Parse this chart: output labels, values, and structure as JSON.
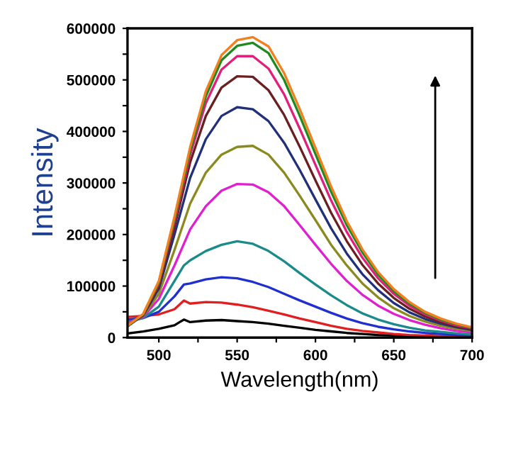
{
  "chart_data": {
    "type": "line",
    "xlabel": "Wavelength(nm)",
    "ylabel": "Intensity",
    "xlim": [
      480,
      700
    ],
    "ylim": [
      0,
      600000
    ],
    "xticks": [
      500,
      {
        "value": 525,
        "label": null
      },
      550,
      {
        "value": 575,
        "label": null
      },
      600,
      {
        "value": 625,
        "label": null
      },
      650,
      {
        "value": 675,
        "label": null
      },
      700
    ],
    "yticks": [
      0,
      {
        "value": 50000,
        "label": null
      },
      100000,
      {
        "value": 150000,
        "label": null
      },
      200000,
      {
        "value": 250000,
        "label": null
      },
      300000,
      {
        "value": 350000,
        "label": null
      },
      400000,
      {
        "value": 450000,
        "label": null
      },
      500000,
      {
        "value": 550000,
        "label": null
      },
      600000
    ],
    "marker": "none",
    "line_style": "solid",
    "x": [
      480,
      490,
      500,
      510,
      520,
      530,
      540,
      550,
      560,
      570,
      580,
      590,
      600,
      610,
      620,
      630,
      640,
      650,
      660,
      670,
      680,
      690,
      700
    ],
    "series": [
      {
        "color": "#000000",
        "x": [
          480,
          490,
          500,
          510,
          516,
          520,
          530,
          540,
          550,
          560,
          570,
          580,
          590,
          600,
          610,
          620,
          630,
          640,
          650,
          660,
          670,
          680,
          690,
          700
        ],
        "values": [
          8000,
          12000,
          17000,
          24000,
          35000,
          30000,
          33000,
          34000,
          32000,
          30000,
          27000,
          23000,
          19000,
          15000,
          12000,
          9000,
          7000,
          5000,
          4000,
          3000,
          2000,
          2000,
          1000,
          1000
        ]
      },
      {
        "color": "#e02020",
        "x": [
          480,
          490,
          500,
          510,
          516,
          520,
          530,
          540,
          550,
          560,
          570,
          580,
          590,
          600,
          610,
          620,
          630,
          640,
          650,
          660,
          670,
          680,
          690,
          700
        ],
        "values": [
          40000,
          42000,
          45000,
          55000,
          72000,
          66000,
          69000,
          68000,
          64000,
          59000,
          52000,
          45000,
          37000,
          30000,
          23000,
          17000,
          13000,
          10000,
          7000,
          5000,
          4000,
          3000,
          2000,
          2000
        ]
      },
      {
        "color": "#1f2fd0",
        "x": [
          480,
          490,
          500,
          510,
          516,
          520,
          530,
          540,
          550,
          560,
          570,
          580,
          590,
          600,
          610,
          620,
          630,
          640,
          650,
          660,
          670,
          680,
          690,
          700
        ],
        "values": [
          35000,
          38000,
          50000,
          80000,
          103000,
          105000,
          113000,
          117000,
          115000,
          108000,
          98000,
          85000,
          72000,
          60000,
          48000,
          37000,
          28000,
          21000,
          16000,
          12000,
          9000,
          7000,
          5000,
          4000
        ]
      },
      {
        "color": "#1a8a8a",
        "x": [
          480,
          490,
          500,
          510,
          516,
          520,
          530,
          540,
          550,
          560,
          570,
          580,
          590,
          600,
          610,
          620,
          630,
          640,
          650,
          660,
          670,
          680,
          690,
          700
        ],
        "values": [
          30000,
          38000,
          60000,
          110000,
          140000,
          150000,
          168000,
          180000,
          187000,
          182000,
          168000,
          148000,
          125000,
          103000,
          82000,
          63000,
          47000,
          35000,
          26000,
          19000,
          14000,
          11000,
          8000,
          6000
        ]
      },
      {
        "color": "#e020d0",
        "values": [
          28000,
          40000,
          75000,
          140000,
          210000,
          255000,
          285000,
          298000,
          297000,
          282000,
          255000,
          218000,
          180000,
          143000,
          110000,
          83000,
          62000,
          46000,
          34000,
          25000,
          18000,
          13000,
          10000
        ]
      },
      {
        "color": "#8a8a20",
        "values": [
          25000,
          42000,
          85000,
          170000,
          260000,
          320000,
          355000,
          370000,
          372000,
          355000,
          320000,
          275000,
          228000,
          180000,
          140000,
          105000,
          78000,
          57000,
          42000,
          31000,
          23000,
          17000,
          13000
        ]
      },
      {
        "color": "#20307a",
        "values": [
          22000,
          43000,
          95000,
          200000,
          310000,
          385000,
          430000,
          447000,
          443000,
          420000,
          378000,
          325000,
          268000,
          212000,
          163000,
          123000,
          92000,
          67000,
          49000,
          36000,
          27000,
          20000,
          15000
        ]
      },
      {
        "color": "#6a2020",
        "values": [
          22000,
          44000,
          100000,
          215000,
          340000,
          430000,
          485000,
          507000,
          506000,
          480000,
          432000,
          370000,
          305000,
          242000,
          187000,
          141000,
          105000,
          77000,
          56000,
          41000,
          30000,
          22000,
          17000
        ]
      },
      {
        "color": "#e0207a",
        "values": [
          22000,
          45000,
          105000,
          225000,
          355000,
          455000,
          520000,
          546000,
          546000,
          522000,
          472000,
          405000,
          335000,
          266000,
          205000,
          155000,
          115000,
          85000,
          62000,
          45000,
          33000,
          24000,
          18000
        ]
      },
      {
        "color": "#208a20",
        "values": [
          22000,
          45000,
          107000,
          230000,
          363000,
          468000,
          538000,
          566000,
          572000,
          552000,
          500000,
          430000,
          356000,
          283000,
          218000,
          165000,
          122000,
          90000,
          66000,
          48000,
          35000,
          26000,
          19000
        ]
      },
      {
        "color": "#f08020",
        "values": [
          23000,
          46000,
          110000,
          235000,
          370000,
          478000,
          548000,
          577000,
          583000,
          565000,
          513000,
          443000,
          368000,
          293000,
          226000,
          171000,
          127000,
          94000,
          69000,
          50000,
          37000,
          27000,
          20000
        ]
      }
    ]
  }
}
